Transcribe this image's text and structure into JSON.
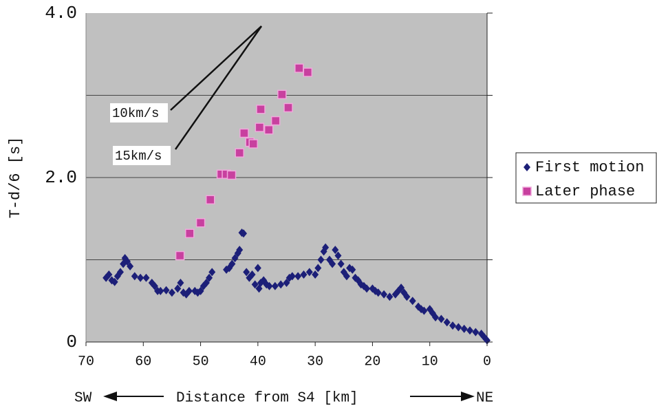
{
  "chart_data": {
    "type": "scatter",
    "y_label": "T-d/6 [s]",
    "x_label": "Distance from S4 [km]",
    "x_left_label": "SW",
    "x_right_label": "NE",
    "annotations": [
      {
        "text": "10km/s"
      },
      {
        "text": "15km/s"
      }
    ],
    "xlim": [
      70,
      0
    ],
    "xticks": [
      70,
      60,
      50,
      40,
      30,
      20,
      10,
      0
    ],
    "ylim": [
      0,
      4
    ],
    "yticks": [
      0,
      {
        "value": 1,
        "label": null
      },
      {
        "value": 2,
        "label": "2.0"
      },
      {
        "value": 3,
        "label": null
      },
      {
        "value": 4,
        "label": "4.0"
      }
    ],
    "grid": true,
    "legend": "right",
    "series": [
      {
        "name": "First motion",
        "color": "#1c1f78",
        "marker": "diamond",
        "x": [
          66.5,
          66,
          65.5,
          65,
          64.5,
          64,
          63.5,
          63.2,
          62.8,
          62.3,
          61.5,
          60.5,
          59.5,
          58.5,
          58,
          57.5,
          57,
          56,
          55,
          54,
          53.5,
          53,
          52.5,
          52,
          51,
          50.5,
          50,
          49.5,
          49,
          48.5,
          48,
          45.5,
          45,
          44.5,
          44,
          43.5,
          43.2,
          42.8,
          42.5,
          42,
          41.5,
          41,
          40.5,
          40,
          39.8,
          39.5,
          39,
          38.5,
          38,
          37,
          36,
          35,
          34.5,
          34,
          33,
          32,
          31,
          30,
          29.5,
          29,
          28.5,
          28.2,
          27.5,
          27,
          26.5,
          26,
          25.5,
          25,
          24.5,
          24,
          23.5,
          23,
          22.5,
          22,
          21.5,
          21,
          20,
          19.5,
          19,
          18,
          17,
          16,
          15.5,
          15,
          14.5,
          14,
          13,
          12,
          11.5,
          11,
          10,
          9.5,
          9,
          8,
          7,
          6,
          5,
          4,
          3,
          2,
          1,
          0.5,
          0
        ],
        "values": [
          0.78,
          0.82,
          0.75,
          0.73,
          0.8,
          0.85,
          0.95,
          1.02,
          0.98,
          0.92,
          0.8,
          0.78,
          0.78,
          0.72,
          0.68,
          0.62,
          0.62,
          0.63,
          0.6,
          0.65,
          0.72,
          0.6,
          0.58,
          0.62,
          0.62,
          0.6,
          0.62,
          0.68,
          0.72,
          0.78,
          0.85,
          0.88,
          0.9,
          0.95,
          1.02,
          1.08,
          1.12,
          1.33,
          1.32,
          0.85,
          0.78,
          0.82,
          0.7,
          0.9,
          0.65,
          0.72,
          0.75,
          0.7,
          0.68,
          0.68,
          0.7,
          0.72,
          0.78,
          0.8,
          0.8,
          0.82,
          0.85,
          0.82,
          0.9,
          1.0,
          1.1,
          1.15,
          1.0,
          0.95,
          1.12,
          1.05,
          0.95,
          0.85,
          0.8,
          0.9,
          0.88,
          0.78,
          0.75,
          0.7,
          0.68,
          0.65,
          0.65,
          0.62,
          0.6,
          0.58,
          0.55,
          0.58,
          0.62,
          0.66,
          0.6,
          0.55,
          0.5,
          0.43,
          0.4,
          0.38,
          0.4,
          0.35,
          0.3,
          0.28,
          0.24,
          0.2,
          0.18,
          0.16,
          0.14,
          0.12,
          0.1,
          0.06,
          0.02
        ]
      },
      {
        "name": "Later phase",
        "color": "#c8409f",
        "marker": "square",
        "x": [
          53.6,
          51.9,
          50.0,
          48.3,
          46.4,
          45.5,
          44.6,
          43.2,
          42.4,
          41.4,
          40.8,
          39.7,
          39.5,
          38.1,
          36.9,
          35.8,
          34.7,
          32.8,
          31.3
        ],
        "values": [
          1.05,
          1.32,
          1.45,
          1.73,
          2.04,
          2.04,
          2.03,
          2.3,
          2.54,
          2.43,
          2.41,
          2.61,
          2.83,
          2.58,
          2.69,
          3.01,
          2.85,
          3.33,
          3.28
        ]
      }
    ]
  }
}
